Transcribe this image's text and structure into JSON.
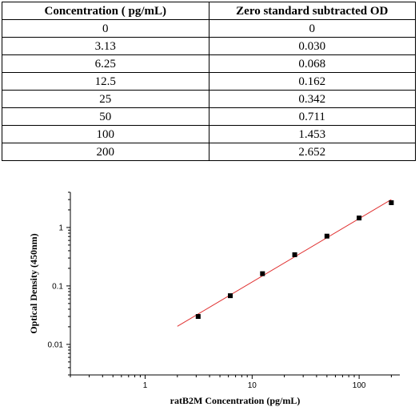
{
  "table": {
    "headers": [
      "Concentration ( pg/mL)",
      "Zero standard subtracted OD"
    ],
    "rows": [
      [
        "0",
        "0"
      ],
      [
        "3.13",
        "0.030"
      ],
      [
        "6.25",
        "0.068"
      ],
      [
        "12.5",
        "0.162"
      ],
      [
        "25",
        "0.342"
      ],
      [
        "50",
        "0.711"
      ],
      [
        "100",
        "1.453"
      ],
      [
        "200",
        "2.652"
      ]
    ]
  },
  "chart_data": {
    "type": "scatter",
    "xlabel": "ratB2M Concentration (pg/mL)",
    "ylabel": "Optical Density (450nm)",
    "xscale": "log",
    "yscale": "log",
    "xlim": [
      0.2,
      240
    ],
    "ylim": [
      0.003,
      4
    ],
    "xticks": [
      {
        "value": 1,
        "label": "1"
      },
      {
        "value": 10,
        "label": "10"
      },
      {
        "value": 100,
        "label": "100"
      }
    ],
    "yticks": [
      {
        "value": 0.01,
        "label": "0.01"
      },
      {
        "value": 0.1,
        "label": "0.1"
      },
      {
        "value": 1,
        "label": "1"
      }
    ],
    "points": [
      {
        "x": 3.13,
        "y": 0.03
      },
      {
        "x": 6.25,
        "y": 0.068
      },
      {
        "x": 12.5,
        "y": 0.162
      },
      {
        "x": 25,
        "y": 0.342
      },
      {
        "x": 50,
        "y": 0.711
      },
      {
        "x": 100,
        "y": 1.453
      },
      {
        "x": 200,
        "y": 2.652
      }
    ],
    "fit_line": {
      "x_start": 2,
      "x_end": 200,
      "color": "#e03030"
    },
    "marker_color": "#000000",
    "grid": false,
    "legend": "none"
  }
}
